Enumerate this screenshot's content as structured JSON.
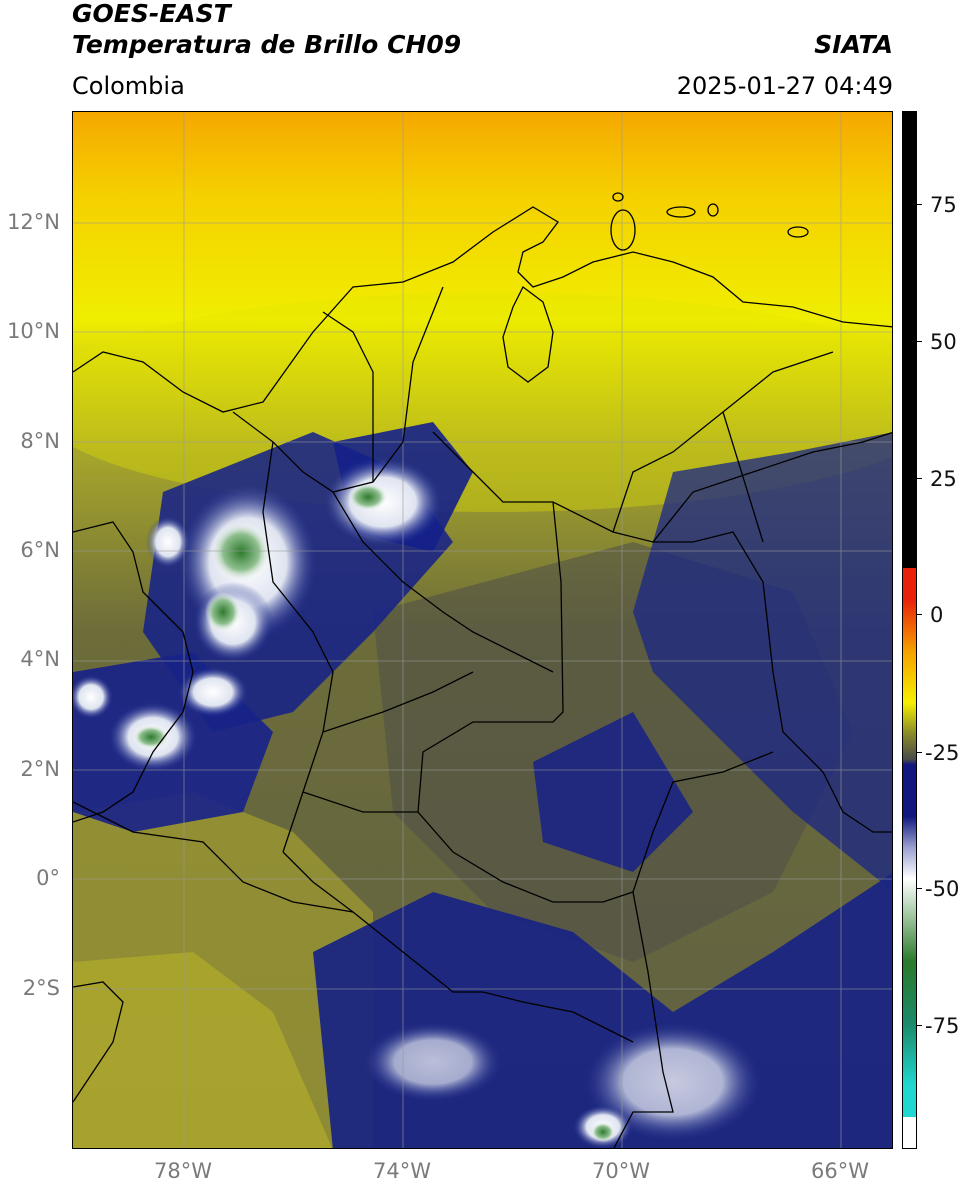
{
  "header": {
    "satellite": "GOES-EAST",
    "product": "Temperatura de Brillo CH09",
    "region": "Colombia",
    "source": "SIATA",
    "datetime": "2025-01-27 04:49"
  },
  "axes": {
    "lat_labels": [
      "12°N",
      "10°N",
      "8°N",
      "6°N",
      "4°N",
      "2°N",
      "0°",
      "2°S"
    ],
    "lon_labels": [
      "78°W",
      "74°W",
      "70°W",
      "66°W"
    ]
  },
  "colorbar": {
    "labels": [
      "75",
      "50",
      "25",
      "0",
      "-25",
      "-50",
      "-75"
    ],
    "colors": {
      "black": "#000000",
      "red": "#e8200c",
      "orange": "#f5a000",
      "yellow": "#f5f000",
      "olive": "#8a8a2a",
      "gray": "#4a4a4a",
      "navy": "#101880",
      "white": "#ffffff",
      "green": "#2a7a2a",
      "cyan": "#20d8d0"
    }
  }
}
